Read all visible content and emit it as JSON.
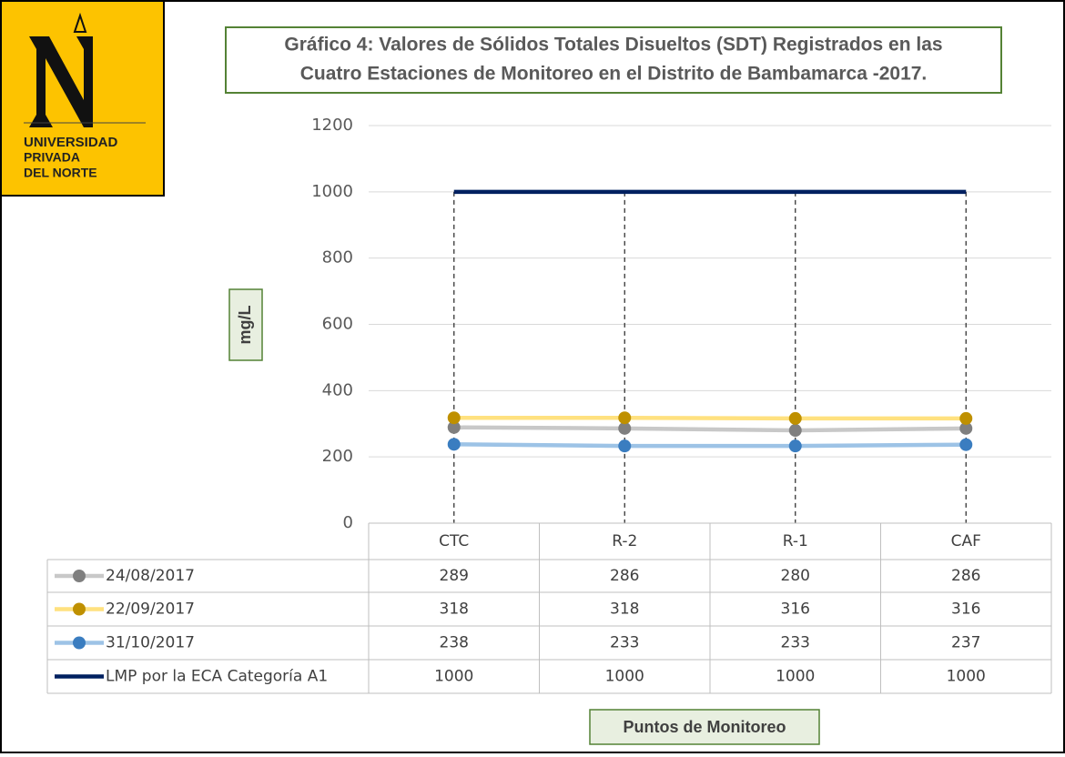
{
  "logo": {
    "lines": [
      "UNIVERSIDAD",
      "PRIVADA",
      "DEL NORTE"
    ]
  },
  "chart_data": {
    "type": "line",
    "title_lines": [
      "Gráfico 4: Valores de Sólidos Totales Disueltos (SDT) Registrados en las",
      "Cuatro Estaciones de Monitoreo en el Distrito de Bambamarca -2017."
    ],
    "ylabel": "mg/L",
    "xlabel": "Puntos de Monitoreo",
    "categories": [
      "CTC",
      "R-2",
      "R-1",
      "CAF"
    ],
    "series": [
      {
        "name": "24/08/2017",
        "color": "#c8c8c8",
        "marker_color": "#7f7f7f",
        "values": [
          289,
          286,
          280,
          286
        ]
      },
      {
        "name": "22/09/2017",
        "color": "#ffe17f",
        "marker_color": "#bf9000",
        "values": [
          318,
          318,
          316,
          316
        ]
      },
      {
        "name": "31/10/2017",
        "color": "#9dc3e6",
        "marker_color": "#3a7dc0",
        "values": [
          238,
          233,
          233,
          237
        ]
      },
      {
        "name": "LMP por la ECA Categoría A1",
        "color": "#002060",
        "values": [
          1000,
          1000,
          1000,
          1000
        ]
      }
    ],
    "ylim": [
      0,
      1200
    ],
    "yticks": [
      0,
      200,
      400,
      600,
      800,
      1000,
      1200
    ],
    "grid": true,
    "data_table": true
  }
}
